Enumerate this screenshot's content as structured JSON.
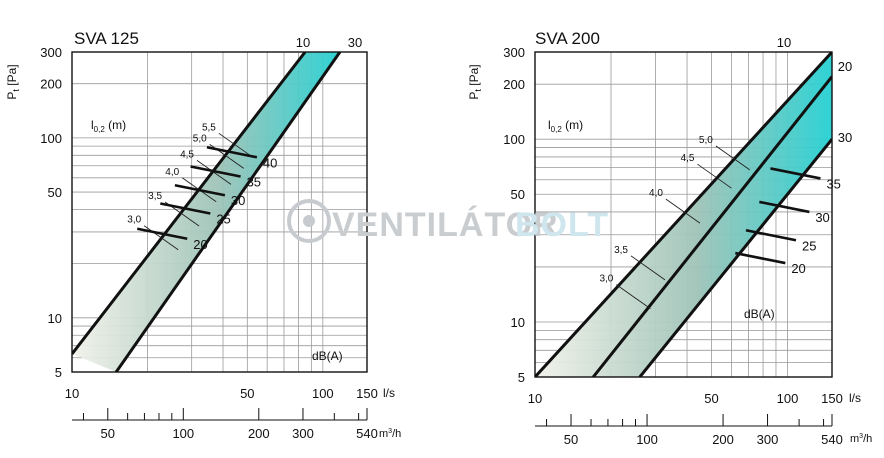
{
  "watermark": {
    "text_a": "VENTILÁTOR",
    "text_b": "BOLT"
  },
  "colors": {
    "band_start": "#f2f2ea",
    "band_mid": "#9ec3b7",
    "band_end": "#25d0d2",
    "line": "#111111",
    "grid": "#9a9a9a"
  },
  "chart_data": [
    {
      "type": "line",
      "title": "SVA 125",
      "ylabel": "Pt [Pa]",
      "xlabel": "l/s",
      "x2label": "m3/h",
      "throw_label": "l0,2 (m)",
      "noise_label": "dB(A)",
      "xscale": "log",
      "yscale": "log",
      "xlim": [
        10,
        150
      ],
      "ylim": [
        5,
        300
      ],
      "x_ticks": [
        10,
        50,
        100,
        150
      ],
      "x_tick_labels": [
        "10",
        "50",
        "100",
        "150"
      ],
      "x2_ticks": [
        50,
        100,
        200,
        300,
        540
      ],
      "x2_tick_labels": [
        "50",
        "100",
        "200",
        "300",
        "540"
      ],
      "y_ticks": [
        5,
        10,
        50,
        100,
        200,
        300
      ],
      "y_tick_labels": [
        "5",
        "10",
        "50",
        "100",
        "200",
        "300"
      ],
      "band_top_label": "10",
      "band_bottom_label": "30",
      "band_upper": [
        [
          10,
          6.3
        ],
        [
          85,
          300
        ]
      ],
      "band_lower": [
        [
          15,
          5
        ],
        [
          117,
          300
        ]
      ],
      "throw": [
        {
          "label": "3,0",
          "x": 19.4,
          "y": 32.5
        },
        {
          "label": "3,5",
          "x": 23.5,
          "y": 44
        },
        {
          "label": "4,0",
          "x": 27.5,
          "y": 60
        },
        {
          "label": "4,5",
          "x": 31.5,
          "y": 75
        },
        {
          "label": "5,0",
          "x": 35.4,
          "y": 92
        },
        {
          "label": "5,5",
          "x": 38.5,
          "y": 106
        }
      ],
      "noise": [
        {
          "label": "20",
          "x": 28.8,
          "y": 27.5
        },
        {
          "label": "25",
          "x": 35.6,
          "y": 38
        },
        {
          "label": "30",
          "x": 40.7,
          "y": 48
        },
        {
          "label": "35",
          "x": 47.0,
          "y": 61
        },
        {
          "label": "40",
          "x": 54.6,
          "y": 78
        }
      ]
    },
    {
      "type": "line",
      "title": "SVA 200",
      "ylabel": "Pt [Pa]",
      "xlabel": "l/s",
      "x2label": "m3/h",
      "throw_label": "l0,2 (m)",
      "noise_label": "dB(A)",
      "xscale": "log",
      "yscale": "log",
      "xlim": [
        10,
        150
      ],
      "ylim": [
        5,
        300
      ],
      "x_ticks": [
        10,
        50,
        100,
        150
      ],
      "x_tick_labels": [
        "10",
        "50",
        "100",
        "150"
      ],
      "x2_ticks": [
        50,
        100,
        200,
        300,
        540
      ],
      "x2_tick_labels": [
        "50",
        "100",
        "200",
        "300",
        "540"
      ],
      "y_ticks": [
        5,
        10,
        50,
        100,
        200,
        300
      ],
      "y_tick_labels": [
        "5",
        "10",
        "50",
        "100",
        "200",
        "300"
      ],
      "band_top_label": "10",
      "band_right_labels": [
        "20",
        "30"
      ],
      "band_upper": [
        [
          10,
          5
        ],
        [
          150,
          300
        ]
      ],
      "band_mid": [
        [
          17,
          5
        ],
        [
          150,
          220
        ]
      ],
      "band_lower": [
        [
          26,
          5
        ],
        [
          150,
          100
        ]
      ],
      "throw": [
        {
          "label": "3,0",
          "x": 21,
          "y": 16
        },
        {
          "label": "3,5",
          "x": 24,
          "y": 23
        },
        {
          "label": "4,0",
          "x": 33,
          "y": 47
        },
        {
          "label": "4,5",
          "x": 44,
          "y": 73
        },
        {
          "label": "5,0",
          "x": 52,
          "y": 92
        }
      ],
      "noise": [
        {
          "label": "20",
          "x": 98,
          "y": 21
        },
        {
          "label": "25",
          "x": 108,
          "y": 28
        },
        {
          "label": "30",
          "x": 122,
          "y": 40
        },
        {
          "label": "35",
          "x": 135,
          "y": 61
        }
      ]
    }
  ]
}
